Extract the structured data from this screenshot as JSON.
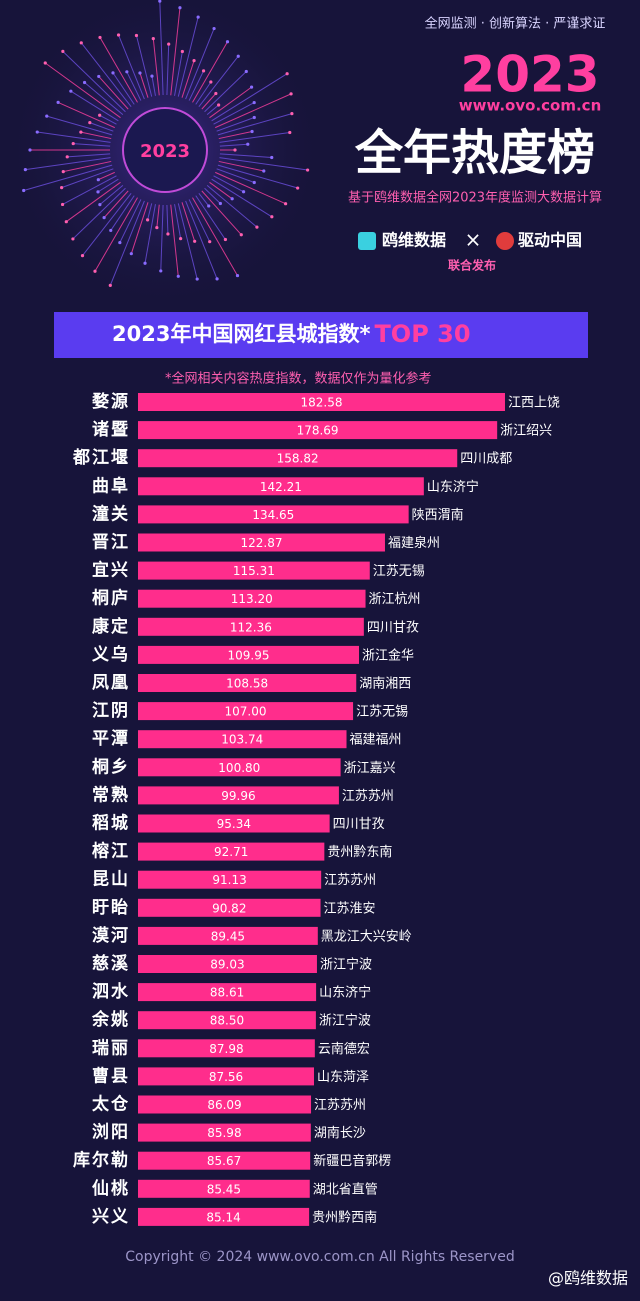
{
  "header": {
    "tagline": "全网监测 · 创新算法 · 严谨求证",
    "year": "2023",
    "website": "www.ovo.com.cn",
    "headline": "全年热度榜",
    "description": "基于鸥维数据全网2023年度监测大数据计算",
    "partner_1": "鸥维数据",
    "connector": "×",
    "partner_2": "驱动中国",
    "joint_release": "联合发布"
  },
  "chart_data": {
    "type": "bar",
    "orientation": "horizontal",
    "title": "2023年中国网红县城指数*",
    "title_highlight": "TOP 30",
    "subtitle": "*全网相关内容热度指数，数据仅作为量化参考",
    "color": "#ff2d8c",
    "categories": [
      "婺源",
      "诸暨",
      "都江堰",
      "曲阜",
      "潼关",
      "晋江",
      "宜兴",
      "桐庐",
      "康定",
      "义乌",
      "凤凰",
      "江阴",
      "平潭",
      "桐乡",
      "常熟",
      "稻城",
      "榕江",
      "昆山",
      "盱眙",
      "漠河",
      "慈溪",
      "泗水",
      "余姚",
      "瑞丽",
      "曹县",
      "太仓",
      "浏阳",
      "库尔勒",
      "仙桃",
      "兴义"
    ],
    "values": [
      182.58,
      178.69,
      158.82,
      142.21,
      134.65,
      122.87,
      115.31,
      113.2,
      112.36,
      109.95,
      108.58,
      107,
      103.74,
      100.8,
      99.96,
      95.34,
      92.71,
      91.13,
      90.82,
      89.45,
      89.03,
      88.61,
      88.5,
      87.98,
      87.56,
      86.09,
      85.98,
      85.67,
      85.45,
      85.14
    ],
    "value_labels": [
      "182.58",
      "178.69",
      "158.82",
      "142.21",
      "134.65",
      "122.87",
      "115.31",
      "113.20",
      "112.36",
      "109.95",
      "108.58",
      "107.00",
      "103.74",
      "100.80",
      "99.96",
      "95.34",
      "92.71",
      "91.13",
      "90.82",
      "89.45",
      "89.03",
      "88.61",
      "88.50",
      "87.98",
      "87.56",
      "86.09",
      "85.98",
      "85.67",
      "85.45",
      "85.14"
    ],
    "regions": [
      "江西上饶",
      "浙江绍兴",
      "四川成都",
      "山东济宁",
      "陕西渭南",
      "福建泉州",
      "江苏无锡",
      "浙江杭州",
      "四川甘孜",
      "浙江金华",
      "湖南湘西",
      "江苏无锡",
      "福建福州",
      "浙江嘉兴",
      "江苏苏州",
      "四川甘孜",
      "贵州黔东南",
      "江苏苏州",
      "江苏淮安",
      "黑龙江大兴安岭",
      "浙江宁波",
      "山东济宁",
      "浙江宁波",
      "云南德宏",
      "山东菏泽",
      "江苏苏州",
      "湖南长沙",
      "新疆巴音郭楞",
      "湖北省直管",
      "贵州黔西南"
    ]
  },
  "footer": {
    "copyright": "Copyright © 2024  www.ovo.com.cn All Rights Reserved",
    "handle": "@鸥维数据"
  }
}
